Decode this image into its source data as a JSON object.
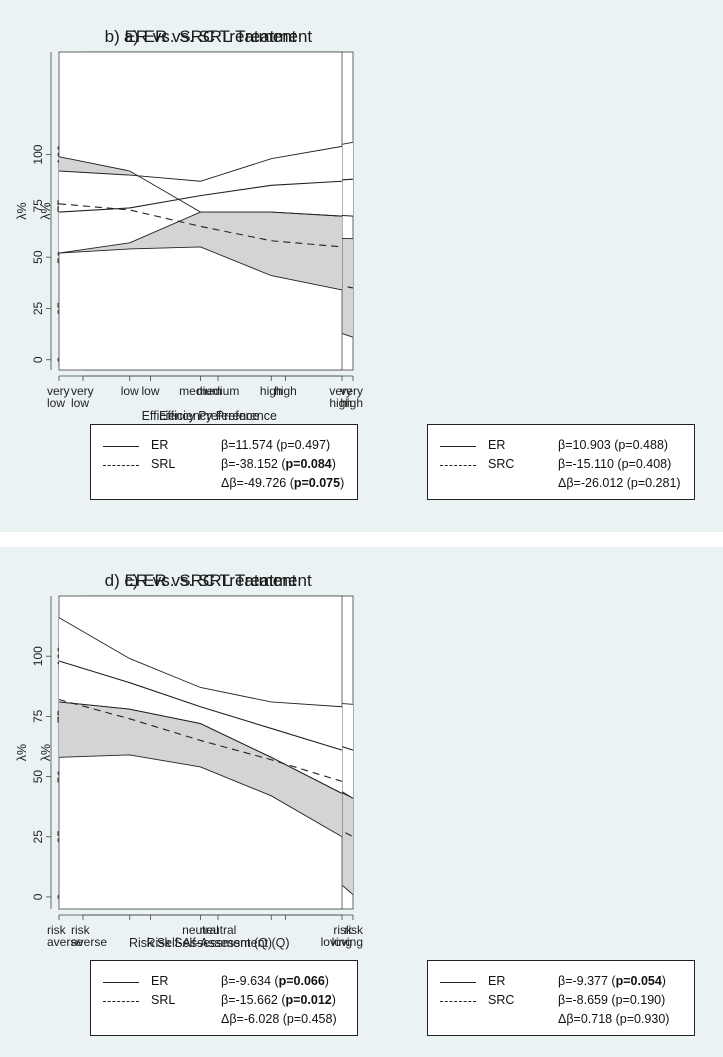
{
  "chart_data": [
    {
      "type": "line",
      "title": "a) ER vs. SRL Treatment",
      "xlabel": "Efficiency Preference",
      "ylabel": "λ%",
      "x_ticks": [
        [
          "very",
          "low"
        ],
        [
          "low"
        ],
        [
          "medium"
        ],
        [
          "high"
        ],
        [
          "very",
          "high"
        ]
      ],
      "y_ticks": [
        "0",
        "25",
        "50",
        "75",
        "100"
      ],
      "ylim": [
        -5,
        150
      ],
      "grid": false,
      "series": [
        {
          "key": "ER",
          "values": [
            72,
            74,
            80,
            86,
            88
          ],
          "ci_lower": [
            50,
            56,
            72,
            72,
            70
          ],
          "ci_upper": [
            95,
            92,
            88,
            100,
            106
          ]
        },
        {
          "key": "T",
          "values": [
            86,
            79,
            60,
            41,
            35
          ],
          "ci_lower": [
            50,
            56,
            49,
            22,
            11
          ],
          "ci_upper": [
            116,
            103,
            72,
            60,
            59
          ]
        }
      ],
      "legend": [
        {
          "name": "ER",
          "stat_parts": [
            {
              "t": "β=11.574 (p=0.497)",
              "b": false
            }
          ]
        },
        {
          "name": "SRL",
          "stat_parts": [
            {
              "t": "β=-38.152 (",
              "b": false
            },
            {
              "t": "p=0.084",
              "b": true
            },
            {
              "t": ")",
              "b": false
            }
          ]
        },
        {
          "name": "",
          "stat_parts": [
            {
              "t": "Δβ=-49.726 (",
              "b": false
            },
            {
              "t": "p=0.075",
              "b": true
            },
            {
              "t": ")",
              "b": false
            }
          ]
        }
      ]
    },
    {
      "type": "line",
      "title": "b) ER vs. SRC Treatment",
      "xlabel": "Efficiency Preference",
      "ylabel": "λ%",
      "x_ticks": [
        [
          "very",
          "low"
        ],
        [
          "low"
        ],
        [
          "medium"
        ],
        [
          "high"
        ],
        [
          "very",
          "high"
        ]
      ],
      "y_ticks": [
        "0",
        "25",
        "50",
        "75",
        "100"
      ],
      "ylim": [
        -5,
        150
      ],
      "grid": false,
      "series": [
        {
          "key": "ER",
          "values": [
            72,
            74,
            80,
            85,
            87
          ],
          "ci_lower": [
            52,
            57,
            72,
            72,
            70
          ],
          "ci_upper": [
            92,
            90,
            87,
            98,
            104
          ]
        },
        {
          "key": "T",
          "values": [
            76,
            73,
            65,
            58,
            55
          ],
          "ci_lower": [
            52,
            54,
            55,
            41,
            34
          ],
          "ci_upper": [
            99,
            92,
            72,
            72,
            70
          ]
        }
      ],
      "legend": [
        {
          "name": "ER",
          "stat_parts": [
            {
              "t": "β=10.903 (p=0.488)",
              "b": false
            }
          ]
        },
        {
          "name": "SRC",
          "stat_parts": [
            {
              "t": "β=-15.110 (p=0.408)",
              "b": false
            }
          ]
        },
        {
          "name": "",
          "stat_parts": [
            {
              "t": "Δβ=-26.012 (p=0.281)",
              "b": false
            }
          ]
        }
      ]
    },
    {
      "type": "line",
      "title": "c) ER vs. SRL Treatment",
      "xlabel": "Risk Self-Assessment (Q)",
      "ylabel": "λ%",
      "x_ticks": [
        [
          "risk",
          "averse"
        ],
        [
          ""
        ],
        [
          "neutral"
        ],
        [
          ""
        ],
        [
          "risk",
          "loving"
        ]
      ],
      "y_ticks": [
        "0",
        "25",
        "50",
        "75",
        "100"
      ],
      "ylim": [
        -5,
        125
      ],
      "grid": false,
      "series": [
        {
          "key": "ER",
          "values": [
            99,
            89,
            80,
            70,
            61
          ],
          "ci_lower": [
            81,
            78,
            72,
            58,
            41
          ],
          "ci_upper": [
            118,
            101,
            88,
            82,
            80
          ]
        },
        {
          "key": "T",
          "values": [
            87,
            72,
            56,
            40,
            25
          ],
          "ci_lower": [
            65,
            57,
            45,
            25,
            1
          ],
          "ci_upper": [
            81,
            78,
            67,
            55,
            41
          ]
        }
      ],
      "legend": [
        {
          "name": "ER",
          "stat_parts": [
            {
              "t": "β=-9.634 (",
              "b": false
            },
            {
              "t": "p=0.066",
              "b": true
            },
            {
              "t": ")",
              "b": false
            }
          ]
        },
        {
          "name": "SRL",
          "stat_parts": [
            {
              "t": "β=-15.662 (",
              "b": false
            },
            {
              "t": "p=0.012",
              "b": true
            },
            {
              "t": ")",
              "b": false
            }
          ]
        },
        {
          "name": "",
          "stat_parts": [
            {
              "t": "Δβ=-6.028 (p=0.458)",
              "b": false
            }
          ]
        }
      ]
    },
    {
      "type": "line",
      "title": "d) ER vs. SRC Treatment",
      "xlabel": "Risk Self-Assessment (Q)",
      "ylabel": "λ%",
      "x_ticks": [
        [
          "risk",
          "averse"
        ],
        [
          ""
        ],
        [
          "neutral"
        ],
        [
          ""
        ],
        [
          "risk",
          "loving"
        ]
      ],
      "y_ticks": [
        "0",
        "25",
        "50",
        "75",
        "100"
      ],
      "ylim": [
        -5,
        125
      ],
      "grid": false,
      "series": [
        {
          "key": "ER",
          "values": [
            98,
            89,
            79,
            70,
            61
          ],
          "ci_lower": [
            81,
            78,
            72,
            58,
            43
          ],
          "ci_upper": [
            116,
            99,
            87,
            81,
            79
          ]
        },
        {
          "key": "T",
          "values": [
            82,
            74,
            65,
            57,
            48
          ],
          "ci_lower": [
            58,
            59,
            54,
            42,
            25
          ],
          "ci_upper": [
            81,
            78,
            72,
            58,
            43
          ]
        }
      ],
      "legend": [
        {
          "name": "ER",
          "stat_parts": [
            {
              "t": "β=-9.377 (",
              "b": false
            },
            {
              "t": "p=0.054",
              "b": true
            },
            {
              "t": ")",
              "b": false
            }
          ]
        },
        {
          "name": "SRC",
          "stat_parts": [
            {
              "t": "β=-8.659 (p=0.190)",
              "b": false
            }
          ]
        },
        {
          "name": "",
          "stat_parts": [
            {
              "t": "Δβ=0.718 (p=0.930)",
              "b": false
            }
          ]
        }
      ]
    }
  ]
}
